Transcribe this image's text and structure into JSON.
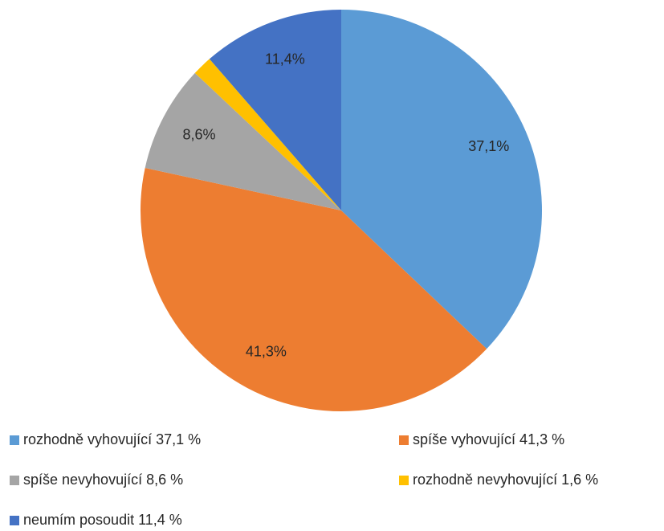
{
  "chart_data": {
    "type": "pie",
    "categories": [
      "rozhodně vyhovující 37,1 %",
      "spíše vyhovující 41,3 %",
      "spíše nevyhovující 8,6 %",
      "rozhodně nevyhovující 1,6 %",
      "neumím posoudit 11,4 %"
    ],
    "values": [
      37.1,
      41.3,
      8.6,
      1.6,
      11.4
    ],
    "value_labels": [
      "37,1%",
      "41,3%",
      "8,6%",
      null,
      "11,4%"
    ],
    "colors": [
      "#5b9bd5",
      "#ed7d31",
      "#a5a5a5",
      "#ffc000",
      "#4472c4"
    ]
  }
}
